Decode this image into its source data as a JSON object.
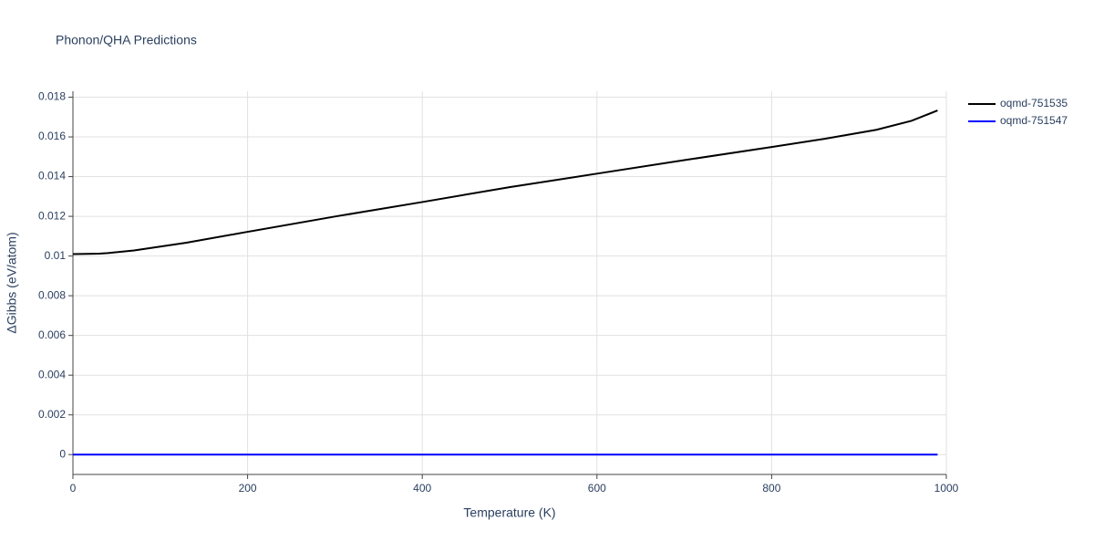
{
  "chart_data": {
    "type": "line",
    "title": "Phonon/QHA Predictions",
    "x_label": "Temperature (K)",
    "y_label": "ΔGibbs (eV/atom)",
    "x": [
      0,
      30,
      40,
      70,
      130,
      200,
      300,
      400,
      500,
      600,
      700,
      800,
      860,
      920,
      960,
      990
    ],
    "series": [
      {
        "name": "oqmd-751535",
        "color": "#000000",
        "values": [
          0.0101,
          0.01012,
          0.01015,
          0.01028,
          0.01067,
          0.01122,
          0.01199,
          0.01272,
          0.01347,
          0.01415,
          0.01483,
          0.01549,
          0.0159,
          0.01636,
          0.01681,
          0.01733
        ]
      },
      {
        "name": "oqmd-751547",
        "color": "#0000ff",
        "values": [
          0,
          0,
          0,
          0,
          0,
          0,
          0,
          0,
          0,
          0,
          0,
          0,
          0,
          0,
          0,
          0
        ]
      }
    ],
    "xlim": [
      0,
      1000
    ],
    "xticks": [
      0,
      200,
      400,
      600,
      800,
      1000
    ],
    "ylim": [
      -0.001,
      0.0183
    ],
    "yticks": [
      0,
      0.002,
      0.004,
      0.006,
      0.008,
      0.01,
      0.012,
      0.014,
      0.016,
      0.018
    ],
    "grid": true,
    "legend": "right"
  }
}
